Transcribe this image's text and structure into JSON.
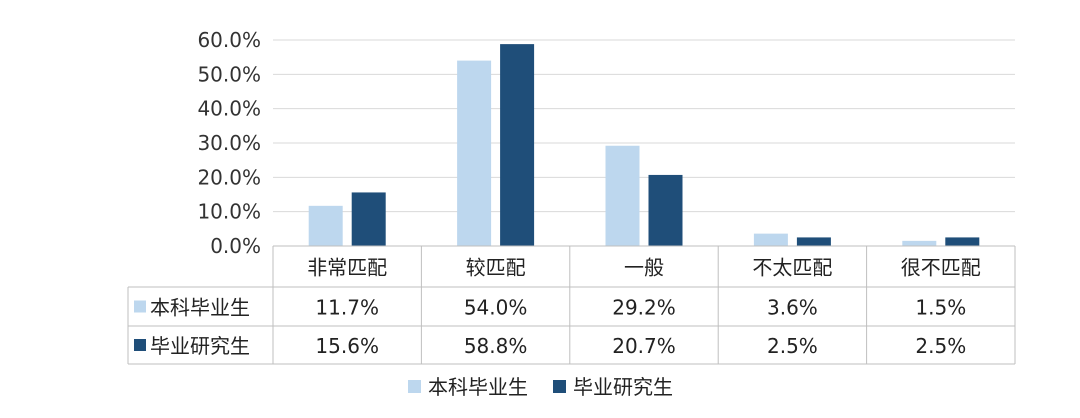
{
  "chart_data": {
    "type": "bar",
    "categories": [
      "非常匹配",
      "较匹配",
      "一般",
      "不太匹配",
      "很不匹配"
    ],
    "series": [
      {
        "name": "本科毕业生",
        "values": [
          11.7,
          54.0,
          29.2,
          3.6,
          1.5
        ],
        "labels": [
          "11.7%",
          "54.0%",
          "29.2%",
          "3.6%",
          "1.5%"
        ]
      },
      {
        "name": "毕业研究生",
        "values": [
          15.6,
          58.8,
          20.7,
          2.5,
          2.5
        ],
        "labels": [
          "15.6%",
          "58.8%",
          "20.7%",
          "2.5%",
          "2.5%"
        ]
      }
    ],
    "ylim": [
      0,
      60
    ],
    "y_ticks": [
      "0.0%",
      "10.0%",
      "20.0%",
      "30.0%",
      "40.0%",
      "50.0%",
      "60.0%"
    ],
    "grid": true,
    "data_table": true,
    "legend_position": "bottom",
    "colors": {
      "series_1": "#bdd7ee",
      "series_2": "#1f4e79",
      "grid": "#d9d9d9",
      "table_border": "#bfbfbf"
    }
  }
}
